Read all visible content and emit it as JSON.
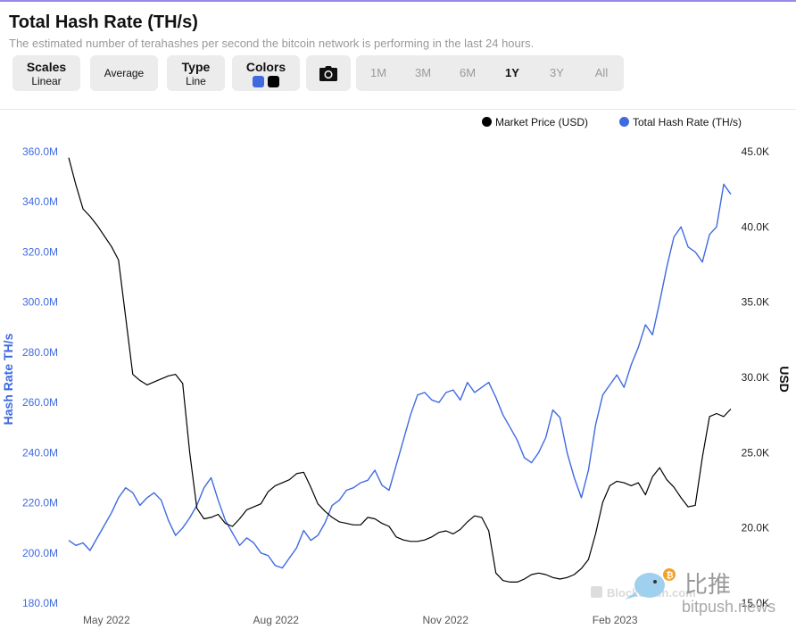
{
  "header": {
    "title": "Total Hash Rate (TH/s)",
    "subtitle": "The estimated number of terahashes per second the bitcoin network is performing in the last 24 hours."
  },
  "toolbar": {
    "scales": {
      "label": "Scales",
      "value": "Linear"
    },
    "average": {
      "label": "Average"
    },
    "type": {
      "label": "Type",
      "value": "Line"
    },
    "colors": {
      "label": "Colors",
      "swatches": [
        "#3f6ae0",
        "#000000"
      ]
    },
    "camera": {
      "icon": "camera-icon"
    },
    "ranges": [
      "1M",
      "3M",
      "6M",
      "1Y",
      "3Y",
      "All"
    ],
    "active_range": "1Y"
  },
  "watermark": {
    "brand": "Blockchain.com",
    "site": "bitpush.news",
    "logo_text": "比推"
  },
  "chart_data": {
    "type": "line",
    "title": "Total Hash Rate (TH/s)",
    "legend": [
      {
        "name": "Market Price (USD)",
        "color": "#000000"
      },
      {
        "name": "Total Hash Rate (TH/s)",
        "color": "#3f6ae0"
      }
    ],
    "legend_position": "top-right",
    "grid": false,
    "x_ticks": [
      "May 2022",
      "Aug 2022",
      "Nov 2022",
      "Feb 2023"
    ],
    "y_left": {
      "label": "Hash Rate TH/s",
      "ticks": [
        "360.0M",
        "340.0M",
        "320.0M",
        "300.0M",
        "280.0M",
        "260.0M",
        "240.0M",
        "220.0M",
        "200.0M",
        "180.0M"
      ],
      "range": [
        180,
        360
      ],
      "unit": "M",
      "color": "#3f6ae0"
    },
    "y_right": {
      "label": "USD",
      "ticks": [
        "45.0K",
        "40.0K",
        "35.0K",
        "30.0K",
        "25.0K",
        "20.0K",
        "15.0K"
      ],
      "range": [
        15,
        45
      ],
      "unit": "K",
      "color": "#000000"
    },
    "series": [
      {
        "name": "Total Hash Rate (TH/s)",
        "axis": "left",
        "color": "#3f6ae0",
        "x": [
          0,
          4,
          8,
          12,
          16,
          20,
          24,
          28,
          32,
          36,
          40,
          44,
          48,
          52,
          56,
          60,
          64,
          68,
          72,
          76,
          80,
          84,
          88,
          92,
          96,
          100,
          104,
          108,
          112,
          116,
          120,
          124,
          128,
          132,
          136,
          140,
          144,
          148,
          152,
          156,
          160,
          164,
          168,
          172,
          176,
          180,
          184,
          188,
          192,
          196,
          200,
          204,
          208,
          212,
          216,
          220,
          224,
          228,
          232,
          236,
          240,
          244,
          248,
          252,
          256,
          260,
          264,
          268,
          272,
          276,
          280,
          284,
          288,
          292,
          296,
          300,
          304,
          308,
          312,
          316,
          320,
          324,
          328,
          332,
          336,
          340,
          344,
          348,
          352,
          356,
          360,
          364,
          368,
          372
        ],
        "values": [
          205,
          203,
          204,
          201,
          206,
          211,
          216,
          222,
          226,
          224,
          219,
          222,
          224,
          221,
          213,
          207,
          210,
          214,
          219,
          226,
          230,
          221,
          213,
          208,
          203,
          206,
          204,
          200,
          199,
          195,
          194,
          198,
          202,
          209,
          205,
          207,
          212,
          219,
          221,
          225,
          226,
          228,
          229,
          233,
          227,
          225,
          235,
          245,
          255,
          263,
          264,
          261,
          260,
          264,
          265,
          261,
          268,
          264,
          266,
          268,
          262,
          255,
          250,
          245,
          238,
          236,
          240,
          246,
          257,
          254,
          240,
          230,
          222,
          233,
          251,
          263,
          267,
          271,
          266,
          275,
          282,
          291,
          287,
          300,
          314,
          326,
          330,
          322,
          320,
          316,
          327,
          330,
          347,
          343
        ]
      },
      {
        "name": "Market Price (USD)",
        "axis": "right",
        "color": "#000000",
        "x": [
          0,
          4,
          8,
          12,
          16,
          20,
          24,
          28,
          32,
          36,
          40,
          44,
          48,
          52,
          56,
          60,
          64,
          68,
          72,
          76,
          80,
          84,
          88,
          92,
          96,
          100,
          104,
          108,
          112,
          116,
          120,
          124,
          128,
          132,
          136,
          140,
          144,
          148,
          152,
          156,
          160,
          164,
          168,
          172,
          176,
          180,
          184,
          188,
          192,
          196,
          200,
          204,
          208,
          212,
          216,
          220,
          224,
          228,
          232,
          236,
          240,
          244,
          248,
          252,
          256,
          260,
          264,
          268,
          272,
          276,
          280,
          284,
          288,
          292,
          296,
          300,
          304,
          308,
          312,
          316,
          320,
          324,
          328,
          332,
          336,
          340,
          344,
          348,
          352,
          356,
          360,
          364,
          368,
          372
        ],
        "values": [
          44.6,
          42.8,
          41.2,
          40.7,
          40.1,
          39.4,
          38.7,
          37.8,
          34.0,
          30.2,
          29.8,
          29.5,
          29.7,
          29.9,
          30.1,
          30.2,
          29.6,
          25.0,
          21.3,
          20.6,
          20.7,
          20.9,
          20.3,
          20.1,
          20.6,
          21.2,
          21.4,
          21.6,
          22.4,
          22.8,
          23.0,
          23.2,
          23.6,
          23.7,
          22.7,
          21.6,
          21.1,
          20.7,
          20.4,
          20.3,
          20.2,
          20.2,
          20.7,
          20.6,
          20.3,
          20.1,
          19.4,
          19.2,
          19.1,
          19.1,
          19.2,
          19.4,
          19.7,
          19.8,
          19.6,
          19.9,
          20.4,
          20.8,
          20.7,
          19.8,
          17.0,
          16.5,
          16.4,
          16.4,
          16.6,
          16.9,
          17.0,
          16.9,
          16.7,
          16.6,
          16.7,
          16.9,
          17.3,
          17.9,
          19.6,
          21.7,
          22.8,
          23.1,
          23.0,
          22.8,
          23.0,
          22.2,
          23.4,
          24.0,
          23.2,
          22.7,
          22.0,
          21.4,
          21.5,
          24.7,
          27.4,
          27.6,
          27.4,
          27.9
        ]
      }
    ]
  }
}
